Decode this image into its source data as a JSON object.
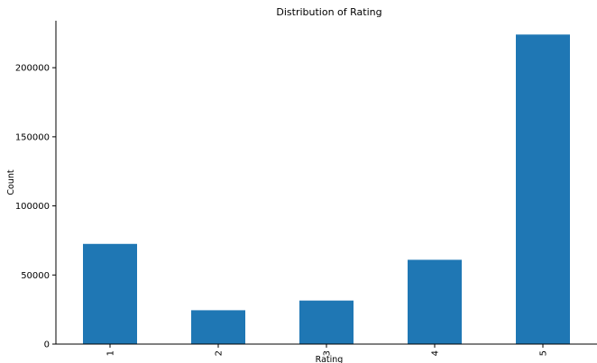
{
  "chart_data": {
    "type": "bar",
    "title": "Distribution of Rating",
    "xlabel": "Rating",
    "ylabel": "Count",
    "categories": [
      "1",
      "2",
      "3",
      "4",
      "5"
    ],
    "values": [
      72500,
      24500,
      31500,
      61000,
      224000
    ],
    "ylim": [
      0,
      234000
    ],
    "yticks": [
      0,
      50000,
      100000,
      150000,
      200000
    ],
    "ytick_labels": [
      "0",
      "50000",
      "100000",
      "150000",
      "200000"
    ],
    "bar_color": "#1f77b4",
    "grid": false,
    "legend": "none"
  }
}
